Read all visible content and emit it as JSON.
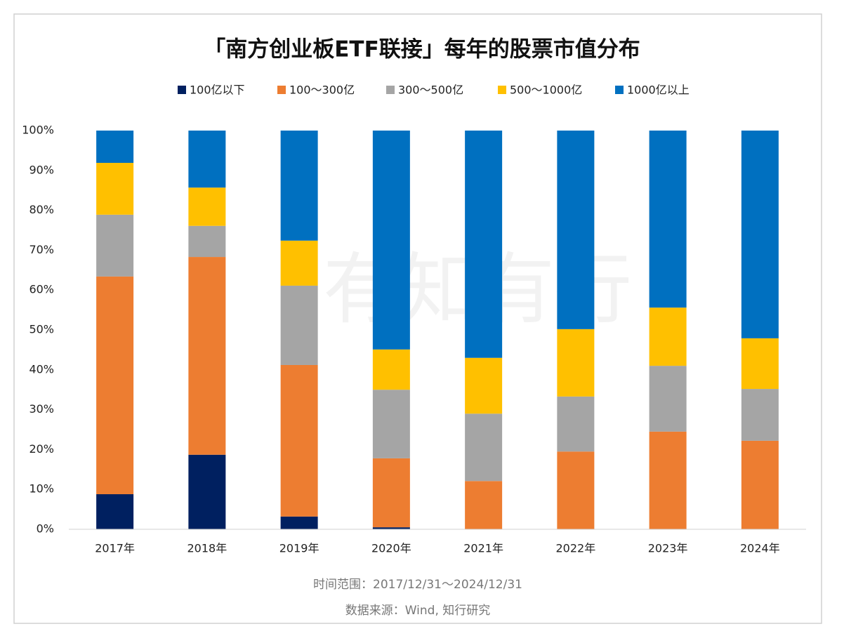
{
  "chart_data": {
    "type": "stacked_bar",
    "title": "「南方创业板ETF联接」每年的股票市值分布",
    "watermark": "有知有行",
    "categories": [
      "2017年",
      "2018年",
      "2019年",
      "2020年",
      "2021年",
      "2022年",
      "2023年",
      "2024年"
    ],
    "series": [
      {
        "name": "100亿以下",
        "color": "#002060",
        "values": [
          8.8,
          18.7,
          3.2,
          0.5,
          0,
          0,
          0,
          0
        ]
      },
      {
        "name": "100～300亿",
        "color": "#ed7d31",
        "values": [
          54.6,
          49.6,
          38.0,
          17.3,
          12.1,
          19.5,
          24.5,
          22.2
        ]
      },
      {
        "name": "300～500亿",
        "color": "#a5a5a5",
        "values": [
          15.5,
          7.8,
          19.9,
          17.2,
          16.9,
          13.8,
          16.5,
          13.0
        ]
      },
      {
        "name": "500～1000亿",
        "color": "#ffc000",
        "values": [
          13.0,
          9.6,
          11.3,
          10.1,
          14.0,
          16.9,
          14.6,
          12.7
        ]
      },
      {
        "name": "1000亿以上",
        "color": "#0070c0",
        "values": [
          8.1,
          14.3,
          27.6,
          54.9,
          57.0,
          49.8,
          44.4,
          52.1
        ]
      }
    ],
    "ylim": [
      0,
      100
    ],
    "yticks": [
      {
        "value": 0,
        "label": "0%"
      },
      {
        "value": 10,
        "label": "10%"
      },
      {
        "value": 20,
        "label": "20%"
      },
      {
        "value": 30,
        "label": "30%"
      },
      {
        "value": 40,
        "label": "40%"
      },
      {
        "value": 50,
        "label": "50%"
      },
      {
        "value": 60,
        "label": "60%"
      },
      {
        "value": 70,
        "label": "70%"
      },
      {
        "value": 80,
        "label": "80%"
      },
      {
        "value": 90,
        "label": "90%"
      },
      {
        "value": 100,
        "label": "100%"
      }
    ],
    "grid": false,
    "legend": "top",
    "notes": [
      "时间范围：2017/12/31～2024/12/31",
      "数据来源：Wind, 知行研究"
    ]
  }
}
